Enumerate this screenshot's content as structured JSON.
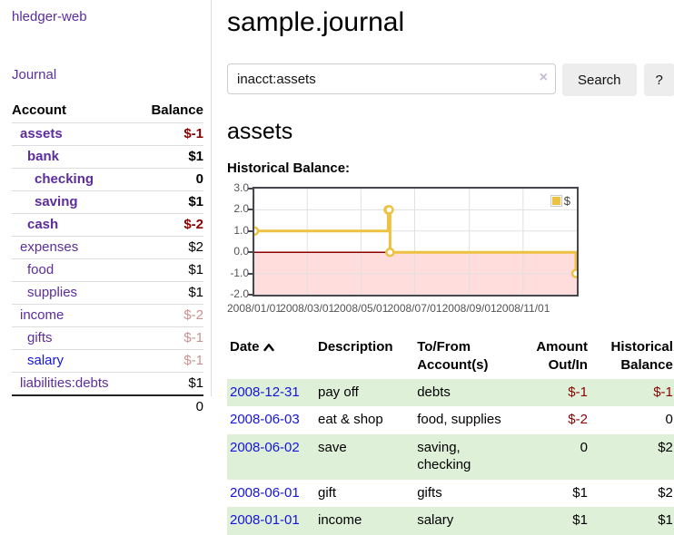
{
  "sidebar": {
    "brand": "hledger-web",
    "journal_link": "Journal",
    "accounts": {
      "col_account": "Account",
      "col_balance": "Balance",
      "rows": [
        {
          "name": "assets",
          "balance": "$-1"
        },
        {
          "name": "bank",
          "balance": "$1"
        },
        {
          "name": "checking",
          "balance": "0"
        },
        {
          "name": "saving",
          "balance": "$1"
        },
        {
          "name": "cash",
          "balance": "$-2"
        },
        {
          "name": "expenses",
          "balance": "$2"
        },
        {
          "name": "food",
          "balance": "$1"
        },
        {
          "name": "supplies",
          "balance": "$1"
        },
        {
          "name": "income",
          "balance": "$-2"
        },
        {
          "name": "gifts",
          "balance": "$-1"
        },
        {
          "name": "salary",
          "balance": "$-1"
        },
        {
          "name": "liabilities:debts",
          "balance": "$1"
        }
      ],
      "total": "0"
    }
  },
  "main": {
    "title": "sample.journal",
    "search": {
      "value": "inacct:assets",
      "clear_icon": "×",
      "search_button": "Search",
      "help_button": "?"
    },
    "heading": "assets",
    "chart_title": "Historical Balance:"
  },
  "chart_data": {
    "type": "line",
    "style": "step",
    "title": "Historical Balance",
    "series": [
      {
        "name": "$",
        "color": "#edc240",
        "x_dates": [
          "2008-01-01",
          "2008-06-01",
          "2008-06-02",
          "2008-06-03",
          "2008-12-31"
        ],
        "x_days": [
          0,
          152,
          153,
          154,
          365
        ],
        "values": [
          1,
          2,
          2,
          0,
          -1
        ]
      }
    ],
    "x_ticks": [
      {
        "d": 0,
        "label": "2008/01/01"
      },
      {
        "d": 60,
        "label": "2008/03/01"
      },
      {
        "d": 121,
        "label": "2008/05/01"
      },
      {
        "d": 182,
        "label": "2008/07/01"
      },
      {
        "d": 244,
        "label": "2008/09/01"
      },
      {
        "d": 305,
        "label": "2008/11/01"
      }
    ],
    "y_ticks": [
      {
        "v": 3,
        "label": "3.0"
      },
      {
        "v": 2,
        "label": "2.0"
      },
      {
        "v": 1,
        "label": "1.0"
      },
      {
        "v": 0,
        "label": "0.0"
      },
      {
        "v": -1,
        "label": "-1.0"
      },
      {
        "v": -2,
        "label": "-2.0"
      }
    ],
    "xlim_days": [
      0,
      366
    ],
    "ylim": [
      -2,
      3
    ],
    "grid": true,
    "gridline_color": "#e0e0e0",
    "negative_region_color": "#ffdddd",
    "zero_line_color": "#8b0000",
    "legend": {
      "label": "$",
      "position": "top-right"
    }
  },
  "register": {
    "headers": {
      "date": "Date",
      "description": "Description",
      "accounts": "To/From Account(s)",
      "amount": "Amount Out/In",
      "balance": "Historical Balance"
    },
    "rows": [
      {
        "date": "2008-12-31",
        "description": "pay off",
        "accounts": "debts",
        "amount": "$-1",
        "balance": "$-1"
      },
      {
        "date": "2008-06-03",
        "description": "eat & shop",
        "accounts": "food, supplies",
        "amount": "$-2",
        "balance": "0"
      },
      {
        "date": "2008-06-02",
        "description": "save",
        "accounts": "saving, checking",
        "amount": "0",
        "balance": "$2"
      },
      {
        "date": "2008-06-01",
        "description": "gift",
        "accounts": "gifts",
        "amount": "$1",
        "balance": "$2"
      },
      {
        "date": "2008-01-01",
        "description": "income",
        "accounts": "salary",
        "amount": "$1",
        "balance": "$1"
      }
    ]
  }
}
